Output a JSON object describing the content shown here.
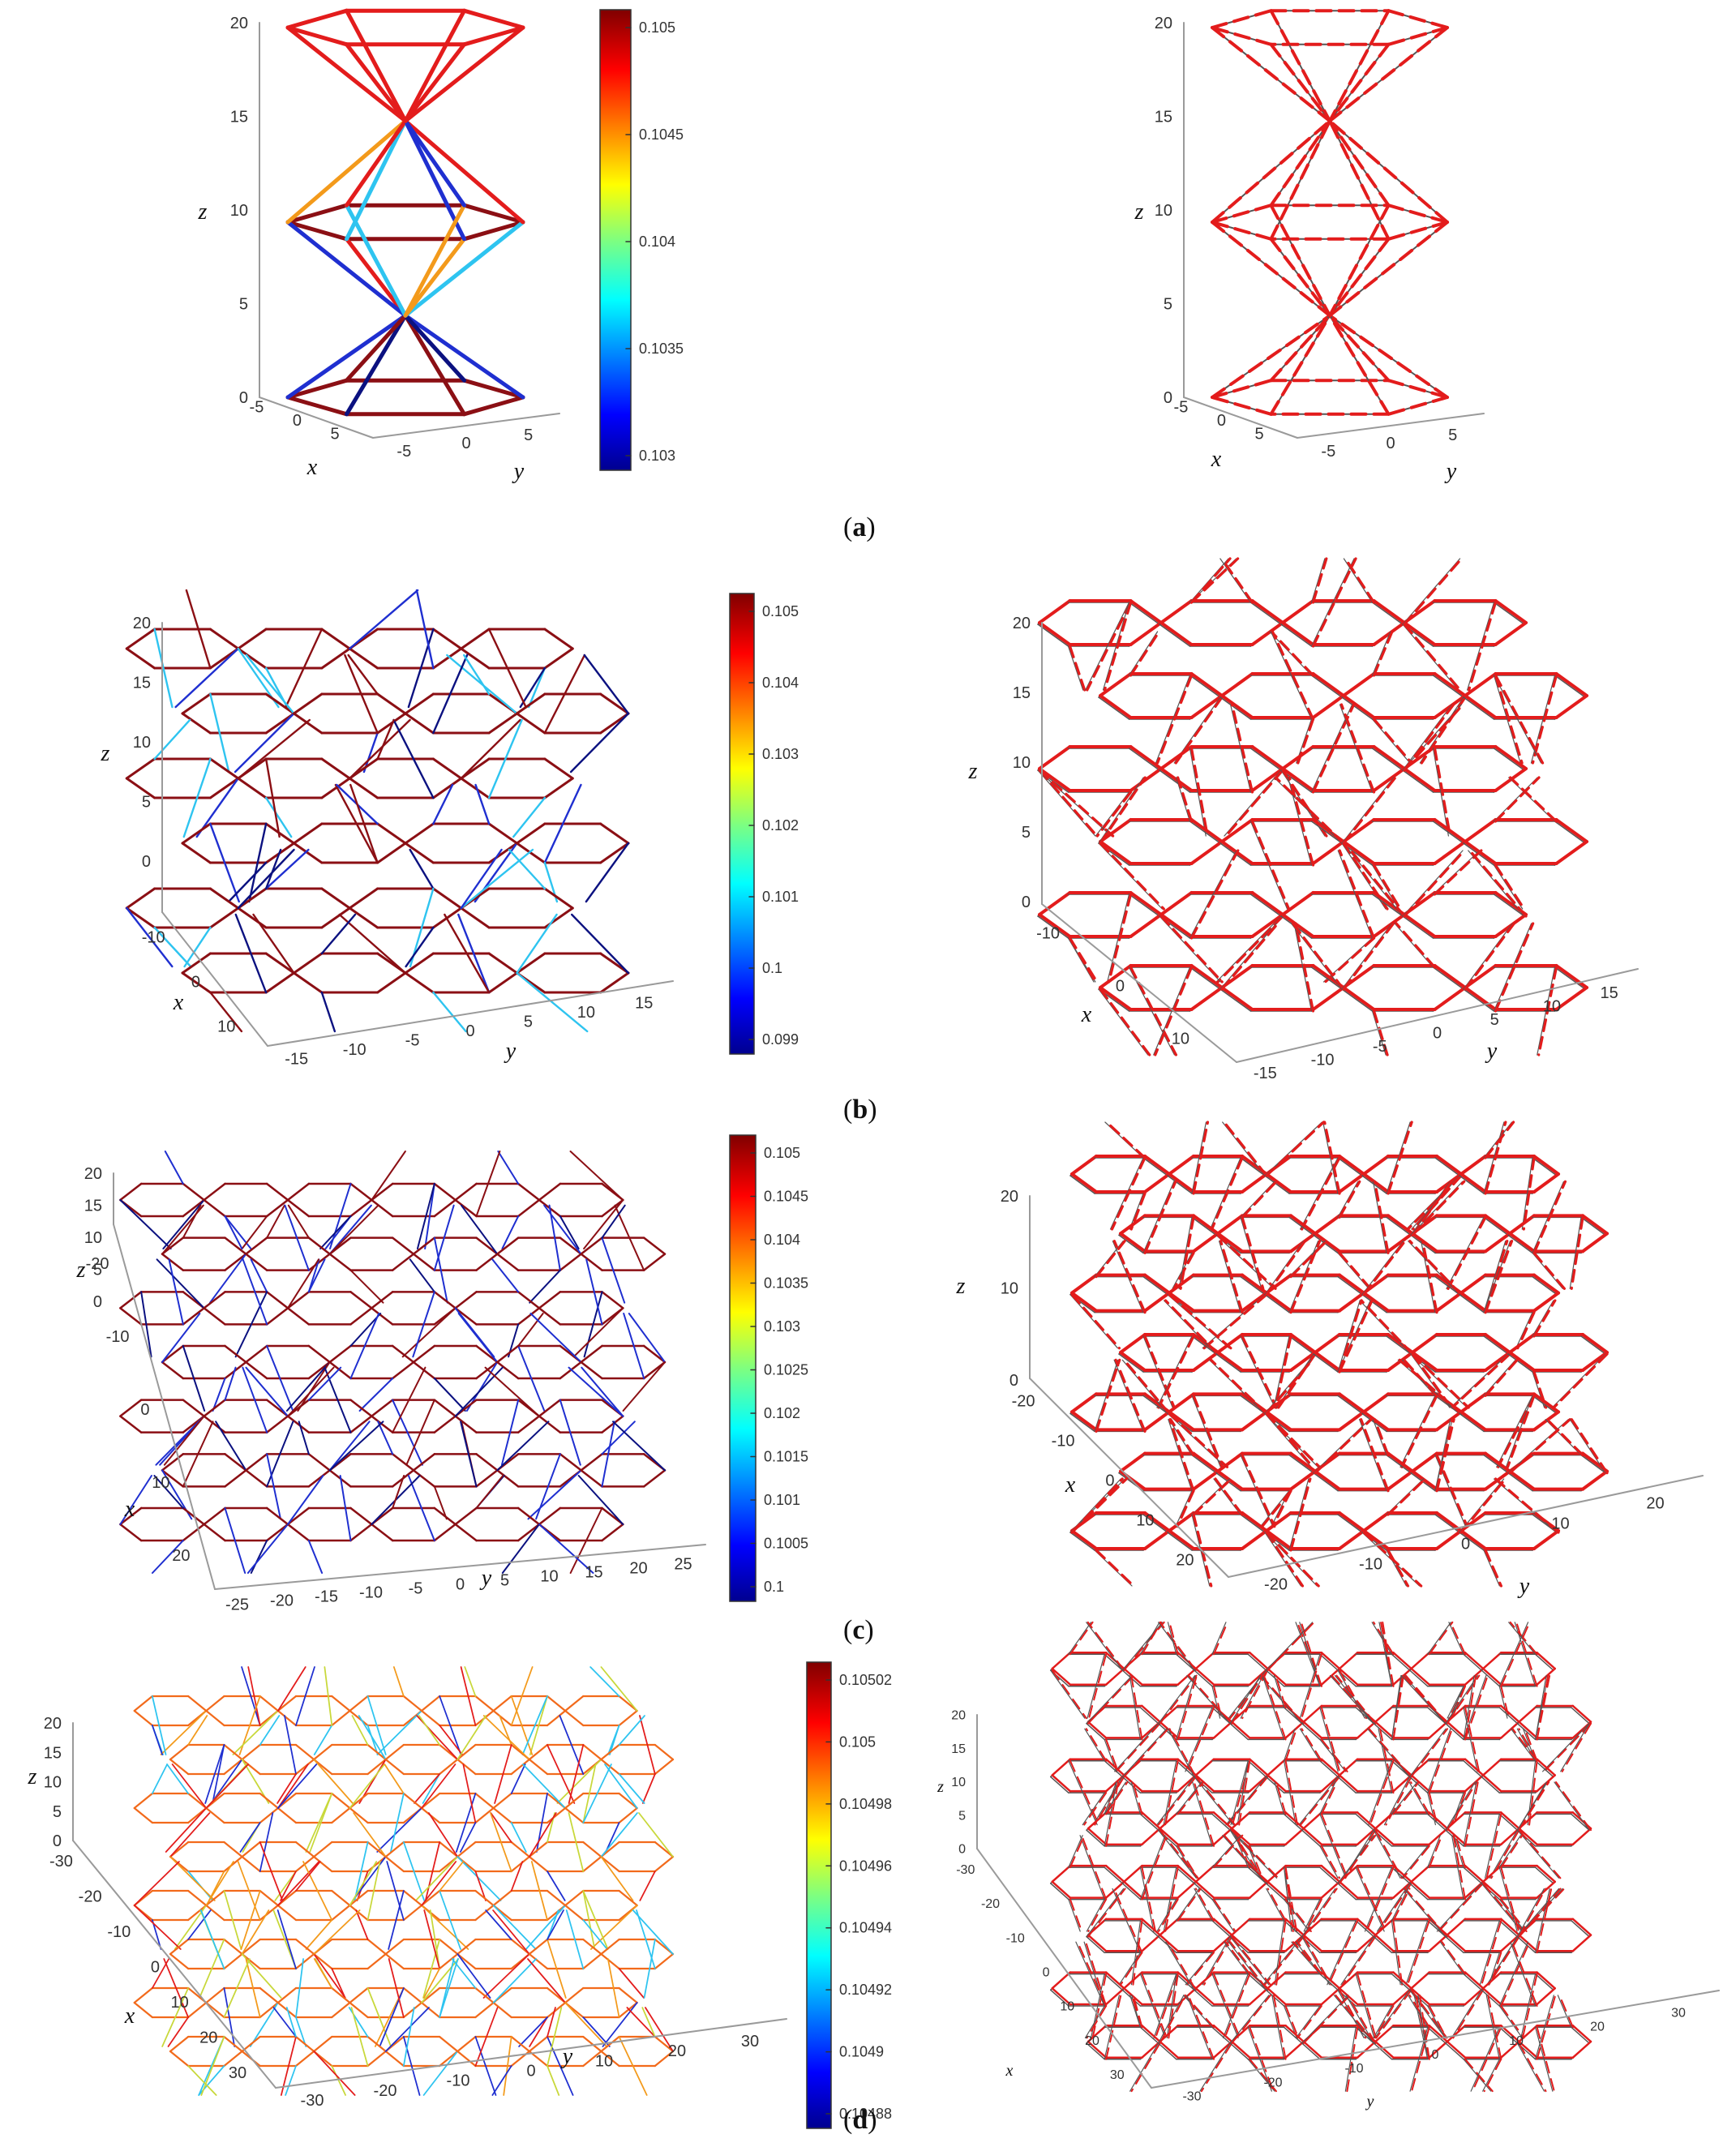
{
  "figure": {
    "captions": [
      {
        "open": "(",
        "letter": "a",
        "close": ")"
      },
      {
        "open": "(",
        "letter": "b",
        "close": ")"
      },
      {
        "open": "(",
        "letter": "c",
        "close": ")"
      },
      {
        "open": "(",
        "letter": "d",
        "close": ")"
      }
    ],
    "axis_labels": {
      "x": "x",
      "y": "y",
      "z": "z"
    }
  },
  "colors": {
    "red": "#e31c1c",
    "darkred": "#8b0f14",
    "blue": "#1f2fd0",
    "navy": "#0b1180",
    "cyan": "#2ec4f0",
    "orange": "#f39a1b",
    "yellowgreen": "#c8d83a",
    "gray": "#555555",
    "axis": "#9a9a9a"
  },
  "chart_data": [
    {
      "type": "other",
      "panel": "a-left",
      "zlabel": "z",
      "xlabel": "x",
      "ylabel": "y",
      "z_ticks": [
        "0",
        "5",
        "10",
        "15",
        "20"
      ],
      "x_ticks": [
        "-5",
        "0",
        "5"
      ],
      "y_ticks": [
        "-5",
        "0",
        "5"
      ],
      "colorbar_ticks": [
        "0.103",
        "0.1035",
        "0.104",
        "0.1045",
        "0.105"
      ]
    },
    {
      "type": "other",
      "panel": "a-right",
      "zlabel": "z",
      "xlabel": "x",
      "ylabel": "y",
      "z_ticks": [
        "0",
        "5",
        "10",
        "15",
        "20"
      ],
      "x_ticks": [
        "-5",
        "0",
        "5"
      ],
      "y_ticks": [
        "-5",
        "0",
        "5"
      ]
    },
    {
      "type": "other",
      "panel": "b-left",
      "zlabel": "z",
      "xlabel": "x",
      "ylabel": "y",
      "z_ticks": [
        "0",
        "5",
        "10",
        "15",
        "20"
      ],
      "x_ticks": [
        "-10",
        "0",
        "10"
      ],
      "y_ticks": [
        "-15",
        "-10",
        "-5",
        "0",
        "5",
        "10",
        "15"
      ],
      "colorbar_ticks": [
        "0.099",
        "0.1",
        "0.101",
        "0.102",
        "0.103",
        "0.104",
        "0.105"
      ]
    },
    {
      "type": "other",
      "panel": "b-right",
      "zlabel": "z",
      "xlabel": "x",
      "ylabel": "y",
      "z_ticks": [
        "0",
        "5",
        "10",
        "15",
        "20"
      ],
      "x_ticks": [
        "-10",
        "0",
        "10"
      ],
      "y_ticks": [
        "-15",
        "-10",
        "-5",
        "0",
        "5",
        "10",
        "15"
      ]
    },
    {
      "type": "other",
      "panel": "c-left",
      "zlabel": "z",
      "xlabel": "x",
      "ylabel": "y",
      "z_ticks": [
        "0",
        "5",
        "10",
        "15",
        "20"
      ],
      "x_ticks": [
        "-20",
        "-10",
        "0",
        "10",
        "20"
      ],
      "y_ticks": [
        "-25",
        "-20",
        "-15",
        "-10",
        "-5",
        "0",
        "5",
        "10",
        "15",
        "20",
        "25"
      ],
      "colorbar_ticks": [
        "0.1",
        "0.1005",
        "0.101",
        "0.1015",
        "0.102",
        "0.1025",
        "0.103",
        "0.1035",
        "0.104",
        "0.1045",
        "0.105"
      ]
    },
    {
      "type": "other",
      "panel": "c-right",
      "zlabel": "z",
      "xlabel": "x",
      "ylabel": "y",
      "z_ticks": [
        "0",
        "10",
        "20"
      ],
      "x_ticks": [
        "-20",
        "-10",
        "0",
        "10",
        "20"
      ],
      "y_ticks": [
        "-20",
        "-10",
        "0",
        "10",
        "20"
      ]
    },
    {
      "type": "other",
      "panel": "d-left",
      "zlabel": "z",
      "xlabel": "x",
      "ylabel": "y",
      "z_ticks": [
        "0",
        "5",
        "10",
        "15",
        "20"
      ],
      "x_ticks": [
        "-30",
        "-20",
        "-10",
        "0",
        "10",
        "20",
        "30"
      ],
      "y_ticks": [
        "-30",
        "-20",
        "-10",
        "0",
        "10",
        "20",
        "30"
      ],
      "colorbar_ticks": [
        "0.10488",
        "0.1049",
        "0.10492",
        "0.10494",
        "0.10496",
        "0.10498",
        "0.105",
        "0.10502"
      ]
    },
    {
      "type": "other",
      "panel": "d-right",
      "zlabel": "z",
      "xlabel": "x",
      "ylabel": "y",
      "z_ticks": [
        "0",
        "5",
        "10",
        "15",
        "20"
      ],
      "x_ticks": [
        "-30",
        "-20",
        "-10",
        "0",
        "10",
        "20",
        "30"
      ],
      "y_ticks": [
        "-30",
        "-20",
        "-10",
        "0",
        "10",
        "20",
        "30"
      ]
    }
  ]
}
